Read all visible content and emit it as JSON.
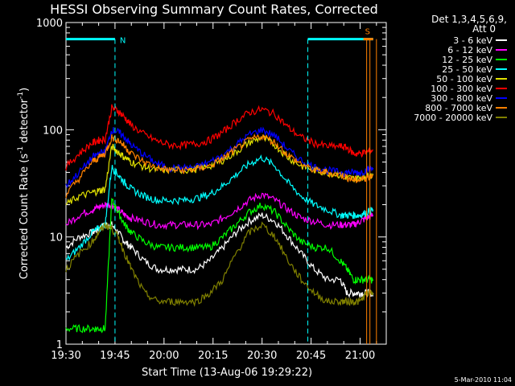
{
  "chart_data": {
    "type": "line",
    "title": "HESSI Observing Summary Count Rates, Corrected",
    "xlabel": "Start Time (13-Aug-06 19:29:22)",
    "ylabel_main": "Corrected Count Rate (s",
    "ylabel_sup1": "-1",
    "ylabel_mid": " detector",
    "ylabel_sup2": "-1",
    "ylabel_end": ")",
    "yscale": "log",
    "xlim_minutes": [
      0,
      98
    ],
    "ylim": [
      1,
      1000
    ],
    "x_ticks": [
      {
        "m": 0,
        "label": "19:30"
      },
      {
        "m": 15,
        "label": "19:45"
      },
      {
        "m": 30,
        "label": "20:00"
      },
      {
        "m": 45,
        "label": "20:15"
      },
      {
        "m": 60,
        "label": "20:30"
      },
      {
        "m": 75,
        "label": "20:45"
      },
      {
        "m": 90,
        "label": "21:00"
      }
    ],
    "y_ticks": [
      {
        "v": 1,
        "label": "1"
      },
      {
        "v": 10,
        "label": "10"
      },
      {
        "v": 100,
        "label": "100"
      },
      {
        "v": 1000,
        "label": "1000"
      }
    ],
    "legend_header": [
      "Det 1,3,4,5,6,9,",
      "Att 0"
    ],
    "timestamp": "5-Mar-2010 11:04",
    "flag_labels": {
      "N": "N",
      "S": "S"
    },
    "series": [
      {
        "name": "3 - 6 keV",
        "color": "#ffffff",
        "x": [
          0,
          4,
          8,
          10,
          12,
          14,
          16,
          18,
          20,
          24,
          28,
          32,
          36,
          40,
          44,
          48,
          52,
          56,
          60,
          64,
          68,
          72,
          76,
          80,
          84,
          86,
          88,
          90,
          92,
          94
        ],
        "y": [
          8,
          10,
          11,
          12,
          13,
          13,
          11,
          9,
          8,
          6,
          5,
          5,
          5,
          5,
          6,
          8,
          11,
          14,
          16,
          14,
          10,
          7,
          5,
          4,
          4,
          3,
          3,
          3,
          3,
          3
        ]
      },
      {
        "name": "6 - 12 keV",
        "color": "#ff00ff",
        "x": [
          0,
          4,
          8,
          10,
          12,
          14,
          16,
          18,
          20,
          24,
          28,
          32,
          36,
          40,
          44,
          48,
          52,
          56,
          60,
          64,
          68,
          72,
          76,
          80,
          84,
          86,
          88,
          90,
          92,
          94
        ],
        "y": [
          13,
          16,
          18,
          19,
          20,
          20,
          18,
          16,
          15,
          14,
          13,
          13,
          13,
          13,
          13,
          15,
          18,
          22,
          25,
          22,
          18,
          15,
          14,
          13,
          13,
          13,
          13,
          14,
          15,
          16
        ]
      },
      {
        "name": "12 - 25 keV",
        "color": "#00ff00",
        "x": [
          0,
          4,
          8,
          10,
          12,
          14,
          16,
          18,
          20,
          24,
          28,
          32,
          36,
          40,
          44,
          48,
          52,
          56,
          60,
          64,
          68,
          72,
          76,
          80,
          84,
          86,
          88,
          90,
          92,
          94
        ],
        "y": [
          1.4,
          1.4,
          1.4,
          1.4,
          1.4,
          22,
          17,
          13,
          11,
          9,
          8,
          8,
          8,
          8,
          8,
          10,
          13,
          17,
          20,
          17,
          12,
          9,
          8,
          8,
          6,
          5,
          4,
          4,
          4,
          4
        ]
      },
      {
        "name": "25 - 50 keV",
        "color": "#00ffff",
        "x": [
          0,
          4,
          8,
          10,
          12,
          14,
          16,
          18,
          20,
          24,
          28,
          32,
          36,
          40,
          44,
          48,
          52,
          56,
          60,
          64,
          68,
          72,
          76,
          80,
          84,
          86,
          88,
          90,
          92,
          94
        ],
        "y": [
          6,
          8,
          11,
          12,
          13,
          45,
          38,
          32,
          28,
          24,
          22,
          22,
          22,
          23,
          25,
          30,
          38,
          48,
          55,
          46,
          32,
          24,
          20,
          18,
          16,
          16,
          16,
          16,
          17,
          18
        ]
      },
      {
        "name": "50 - 100 keV",
        "color": "#e0e000",
        "x": [
          0,
          4,
          8,
          10,
          12,
          14,
          16,
          18,
          20,
          24,
          28,
          32,
          36,
          40,
          44,
          48,
          52,
          56,
          60,
          64,
          68,
          72,
          76,
          80,
          84,
          86,
          88,
          90,
          92,
          94
        ],
        "y": [
          20,
          24,
          26,
          27,
          28,
          70,
          62,
          55,
          50,
          45,
          42,
          42,
          42,
          43,
          46,
          52,
          62,
          76,
          85,
          72,
          55,
          46,
          42,
          40,
          38,
          36,
          35,
          36,
          37,
          38
        ]
      },
      {
        "name": "100 - 300 keV",
        "color": "#ff0000",
        "x": [
          0,
          4,
          8,
          10,
          12,
          14,
          16,
          18,
          20,
          24,
          28,
          32,
          36,
          40,
          44,
          48,
          52,
          56,
          60,
          64,
          68,
          72,
          76,
          80,
          84,
          86,
          88,
          90,
          92,
          94
        ],
        "y": [
          45,
          60,
          75,
          80,
          82,
          160,
          150,
          130,
          110,
          90,
          78,
          72,
          72,
          74,
          80,
          95,
          120,
          145,
          155,
          140,
          105,
          85,
          75,
          70,
          70,
          68,
          60,
          60,
          62,
          65
        ]
      },
      {
        "name": "300 - 800 keV",
        "color": "#0000ff",
        "x": [
          0,
          4,
          8,
          10,
          12,
          14,
          16,
          18,
          20,
          24,
          28,
          32,
          36,
          40,
          44,
          48,
          52,
          56,
          60,
          64,
          68,
          72,
          76,
          80,
          84,
          86,
          88,
          90,
          92,
          94
        ],
        "y": [
          30,
          40,
          55,
          60,
          62,
          100,
          95,
          85,
          72,
          58,
          48,
          44,
          44,
          45,
          50,
          58,
          72,
          90,
          100,
          88,
          65,
          52,
          45,
          42,
          40,
          40,
          40,
          40,
          42,
          44
        ]
      },
      {
        "name": "800 - 7000 keV",
        "color": "#ff8000",
        "x": [
          0,
          4,
          8,
          10,
          12,
          14,
          16,
          18,
          20,
          24,
          28,
          32,
          36,
          40,
          44,
          48,
          52,
          56,
          60,
          64,
          68,
          72,
          76,
          80,
          84,
          86,
          88,
          90,
          92,
          94
        ],
        "y": [
          25,
          35,
          50,
          55,
          60,
          85,
          80,
          70,
          60,
          50,
          44,
          42,
          42,
          43,
          46,
          54,
          66,
          80,
          88,
          76,
          58,
          48,
          42,
          40,
          38,
          36,
          34,
          34,
          36,
          38
        ]
      },
      {
        "name": "7000 - 20000 keV",
        "color": "#808000",
        "x": [
          0,
          4,
          8,
          10,
          12,
          14,
          16,
          18,
          20,
          24,
          28,
          32,
          36,
          40,
          44,
          48,
          52,
          56,
          60,
          64,
          68,
          72,
          76,
          80,
          84,
          86,
          88,
          90,
          92,
          94
        ],
        "y": [
          5,
          7,
          9,
          11,
          13,
          12,
          10,
          7,
          5,
          3,
          2.5,
          2.5,
          2.5,
          2.5,
          3,
          4,
          7,
          11,
          13,
          10,
          6,
          4,
          3,
          2.5,
          2.5,
          2.5,
          2.5,
          2.5,
          3,
          3
        ]
      }
    ],
    "overlays": {
      "cyan_flag": {
        "color": "#00ffff",
        "segments": [
          [
            0,
            15,
            700
          ],
          [
            74,
            94,
            700
          ]
        ],
        "drops": [
          15,
          74
        ]
      },
      "orange_flag": {
        "color": "#ff8000",
        "segments": [
          [
            91,
            94,
            700
          ]
        ],
        "drops": [
          92,
          93,
          95
        ]
      }
    }
  }
}
